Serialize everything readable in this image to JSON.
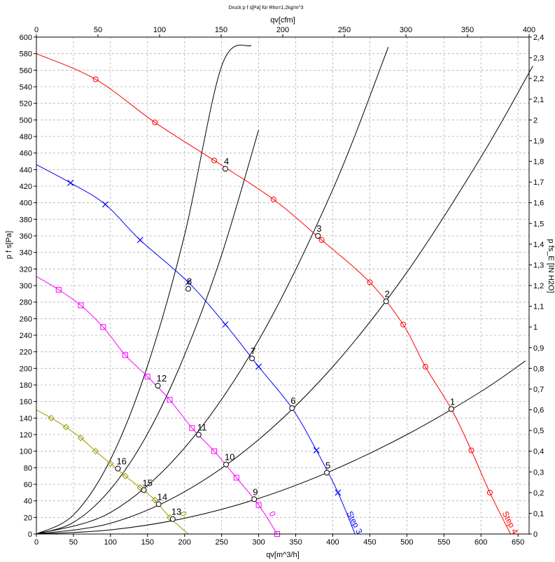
{
  "chart_data": {
    "type": "line",
    "title": "Druck p f s[Pa] für Rho=1,2kg/m^3",
    "xlabel": "qv[m^3/h]",
    "ylabel": "p f s[Pa]",
    "x2label": "qv[cfm]",
    "y2label": "p fs_E [IN H2O]",
    "xlim": [
      0,
      665
    ],
    "ylim": [
      0,
      600
    ],
    "x2lim": [
      0,
      400
    ],
    "y2lim": [
      0,
      2.4
    ],
    "x_ticks": [
      "0",
      "50",
      "100",
      "150",
      "200",
      "250",
      "300",
      "350",
      "400",
      "450",
      "500",
      "550",
      "600",
      "650"
    ],
    "y_ticks": [
      "0",
      "20",
      "40",
      "60",
      "80",
      "100",
      "120",
      "140",
      "160",
      "180",
      "200",
      "220",
      "240",
      "260",
      "280",
      "300",
      "320",
      "340",
      "360",
      "380",
      "400",
      "420",
      "440",
      "460",
      "480",
      "500",
      "520",
      "540",
      "560",
      "580",
      "600"
    ],
    "x2_ticks": [
      "0",
      "50",
      "100",
      "150",
      "200",
      "250",
      "300",
      "350",
      "400"
    ],
    "y2_ticks": [
      "0",
      "0,1",
      "0,2",
      "0,3",
      "0,4",
      "0,5",
      "0,6",
      "0,7",
      "0,8",
      "0,9",
      "1",
      "1,1",
      "1,2",
      "1,3",
      "1,4",
      "1,5",
      "1,6",
      "1,7",
      "1,8",
      "1,9",
      "2",
      "2,1",
      "2,2",
      "2,3",
      "2,4"
    ],
    "grid": true,
    "series": [
      {
        "name": "Step 4",
        "color": "#ff0000",
        "marker": "circle",
        "x": [
          0,
          80,
          160,
          240,
          320,
          385,
          450,
          495,
          525,
          560,
          587,
          612,
          640
        ],
        "y": [
          580,
          549,
          497,
          451,
          404,
          355,
          304,
          253,
          202,
          151,
          101,
          50,
          0
        ],
        "marker_x": [
          80,
          160,
          240,
          320,
          385,
          450,
          495,
          525,
          560,
          587,
          612
        ],
        "marker_y": [
          549,
          497,
          451,
          404,
          355,
          304,
          253,
          202,
          151,
          101,
          50
        ]
      },
      {
        "name": "Step 3",
        "color": "#0000ff",
        "marker": "x",
        "x": [
          0,
          46,
          93,
          140,
          205,
          255,
          300,
          345,
          378,
          407,
          430
        ],
        "y": [
          446,
          424,
          398,
          355,
          304,
          253,
          202,
          152,
          101,
          50,
          0
        ],
        "marker_x": [
          46,
          93,
          140,
          205,
          255,
          300,
          378,
          407
        ],
        "marker_y": [
          424,
          398,
          355,
          304,
          253,
          202,
          101,
          50
        ]
      },
      {
        "name": "0",
        "color": "#ff00ff",
        "marker": "square",
        "x": [
          0,
          30,
          60,
          90,
          120,
          150,
          180,
          210,
          240,
          270,
          300,
          325
        ],
        "y": [
          311,
          295,
          276,
          250,
          216,
          190,
          162,
          128,
          100,
          68,
          35,
          0
        ],
        "marker_x": [
          30,
          60,
          90,
          120,
          150,
          180,
          210,
          240,
          270,
          300,
          325
        ],
        "marker_y": [
          295,
          276,
          250,
          216,
          190,
          162,
          128,
          100,
          68,
          35,
          0
        ]
      },
      {
        "name": "0",
        "color": "#999900",
        "marker": "diamond",
        "x": [
          0,
          20,
          40,
          60,
          80,
          100,
          120,
          140,
          160,
          180,
          205
        ],
        "y": [
          150,
          140,
          129,
          116,
          100,
          85,
          70,
          56,
          41,
          20,
          0
        ],
        "marker_x": [
          20,
          40,
          60,
          80,
          100,
          120,
          140,
          160,
          180
        ],
        "marker_y": [
          140,
          129,
          116,
          100,
          85,
          70,
          56,
          41,
          20
        ]
      }
    ],
    "system_curves": [
      {
        "color": "#000000",
        "x": [
          0,
          100,
          200,
          300,
          400,
          500,
          600,
          660
        ],
        "y": [
          0,
          5,
          19,
          43,
          77,
          120,
          172,
          209
        ]
      },
      {
        "color": "#000000",
        "x": [
          0,
          100,
          200,
          300,
          400,
          500,
          600,
          670
        ],
        "y": [
          0,
          13,
          51,
          114,
          202,
          316,
          455,
          565
        ]
      },
      {
        "color": "#000000",
        "x": [
          0,
          100,
          200,
          300,
          400,
          475
        ],
        "y": [
          0,
          26,
          104,
          234,
          416,
          588
        ]
      },
      {
        "color": "#000000",
        "x": [
          0,
          50,
          100,
          150,
          200,
          250,
          300
        ],
        "y": [
          0,
          14,
          54,
          121,
          216,
          337,
          488
        ]
      },
      {
        "color": "#000000",
        "x": [
          0,
          50,
          100,
          150,
          200,
          250,
          290
        ],
        "y": [
          0,
          23,
          90,
          203,
          361,
          565,
          590
        ]
      }
    ],
    "points": [
      {
        "label": "1",
        "x": 560,
        "y": 151
      },
      {
        "label": "2",
        "x": 472,
        "y": 281
      },
      {
        "label": "3",
        "x": 380,
        "y": 360
      },
      {
        "label": "4",
        "x": 255,
        "y": 441
      },
      {
        "label": "5",
        "x": 392,
        "y": 74
      },
      {
        "label": "6",
        "x": 345,
        "y": 152
      },
      {
        "label": "7",
        "x": 291,
        "y": 212
      },
      {
        "label": "8",
        "x": 205,
        "y": 296
      },
      {
        "label": "9",
        "x": 294,
        "y": 42
      },
      {
        "label": "10",
        "x": 256,
        "y": 84
      },
      {
        "label": "11",
        "x": 219,
        "y": 120
      },
      {
        "label": "12",
        "x": 164,
        "y": 179
      },
      {
        "label": "13",
        "x": 184,
        "y": 18
      },
      {
        "label": "14",
        "x": 165,
        "y": 36
      },
      {
        "label": "15",
        "x": 145,
        "y": 53
      },
      {
        "label": "16",
        "x": 110,
        "y": 79
      }
    ]
  }
}
